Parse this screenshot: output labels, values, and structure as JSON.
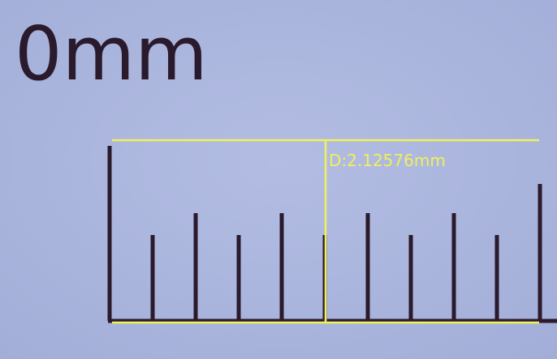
{
  "ruler_label": "0mm",
  "measurement": {
    "label": "D:2.12576mm"
  }
}
